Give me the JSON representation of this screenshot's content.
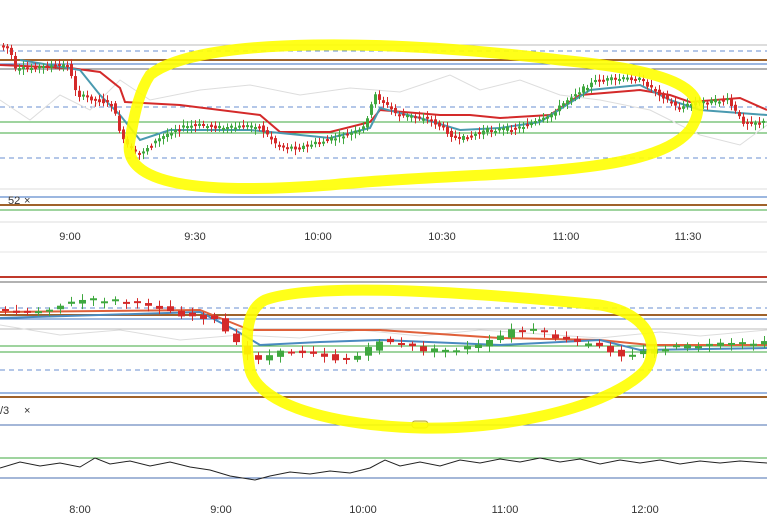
{
  "top_panel": {
    "indicator_label": "52",
    "close_icon": "×",
    "time_labels": [
      "9:00",
      "9:30",
      "10:00",
      "10:30",
      "11:00",
      "11:30"
    ]
  },
  "bottom_panel": {
    "indicator_label": "/3",
    "close_icon": "×",
    "time_labels": [
      "8:00",
      "9:00",
      "10:00",
      "11:00",
      "12:00"
    ]
  }
}
